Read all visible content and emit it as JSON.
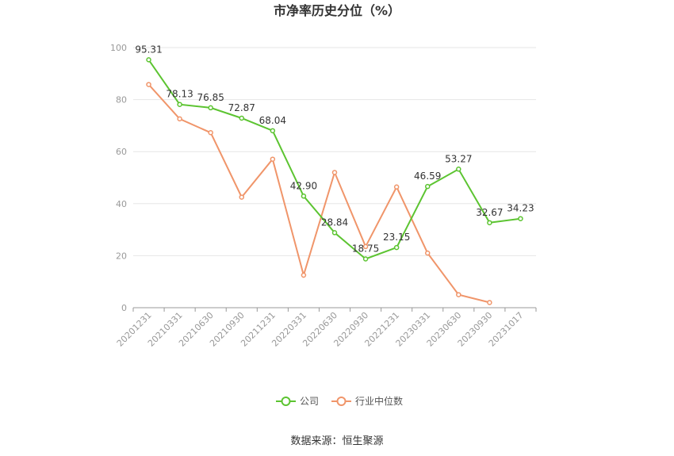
{
  "chart_data": {
    "type": "line",
    "title": "市净率历史分位（%）",
    "categories": [
      "20201231",
      "20210331",
      "20210630",
      "20210930",
      "20211231",
      "20220331",
      "20220630",
      "20220930",
      "20221231",
      "20230331",
      "20230630",
      "20230930",
      "20231017"
    ],
    "ylim": [
      0,
      100
    ],
    "yticks": [
      0,
      20,
      40,
      60,
      80,
      100
    ],
    "grid": true,
    "legend_position": "bottom",
    "series": [
      {
        "name": "公司",
        "color": "#5cc431",
        "values": [
          95.31,
          78.13,
          76.85,
          72.87,
          68.04,
          42.9,
          28.84,
          18.75,
          23.15,
          46.59,
          53.27,
          32.67,
          34.23
        ],
        "labels": [
          "95.31",
          "78.13",
          "76.85",
          "72.87",
          "68.04",
          "42.90",
          "28.84",
          "18.75",
          "23.15",
          "46.59",
          "53.27",
          "32.67",
          "34.23"
        ]
      },
      {
        "name": "行业中位数",
        "color": "#f0956a",
        "values": [
          85.8,
          72.6,
          67.3,
          42.5,
          57.1,
          12.5,
          52.0,
          23.5,
          46.4,
          21.0,
          5.0,
          2.0,
          null
        ]
      }
    ]
  },
  "source": "数据来源：恒生聚源"
}
